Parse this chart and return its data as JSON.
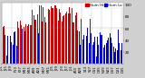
{
  "background_color": "#d0d0d0",
  "plot_bg_color": "#ffffff",
  "bar_color_high": "#cc0000",
  "bar_color_low": "#0000cc",
  "ylim": [
    0,
    105
  ],
  "yticks": [
    20,
    40,
    60,
    80,
    100
  ],
  "ytick_labels": [
    "20",
    "40",
    "60",
    "80",
    "100"
  ],
  "n_bars": 365,
  "seed": 42,
  "avg_value": 62,
  "amplitude": 28,
  "noise": 16,
  "grid_interval": 30,
  "tick_fontsize": 3.0,
  "legend_fontsize": 3.0,
  "bar_width": 0.7
}
